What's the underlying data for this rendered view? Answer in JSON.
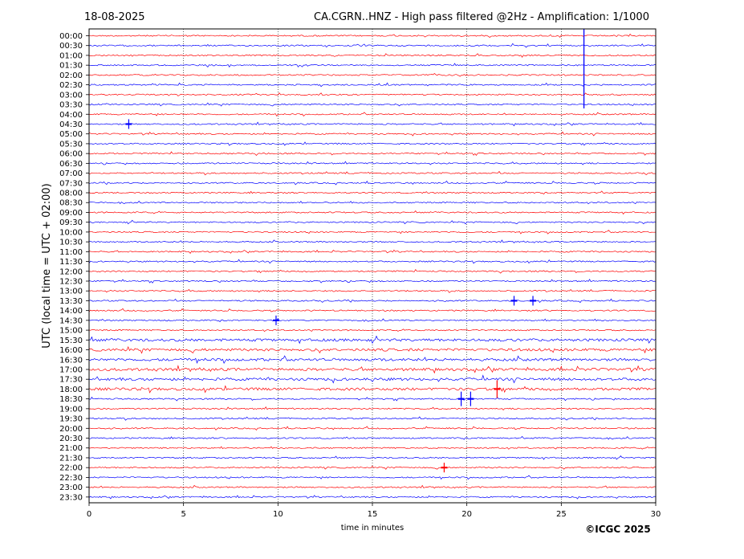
{
  "header": {
    "date": "18-08-2025",
    "title": "CA.CGRN..HNZ - High pass filtered @2Hz - Amplification: 1/1000"
  },
  "copyright": "©ICGC 2025",
  "chart_data": {
    "type": "line",
    "subtype": "helicorder",
    "title": "CA.CGRN..HNZ - High pass filtered @2Hz - Amplification: 1/1000",
    "xlabel": "time in minutes",
    "ylabel": "UTC (local time = UTC + 02:00)",
    "xlim": [
      0,
      30
    ],
    "xticks": [
      "0",
      "5",
      "10",
      "15",
      "20",
      "25",
      "30"
    ],
    "grid_x": "dotted at 5, 10, 15, 20, 25",
    "trace_colors": [
      "#ff0000",
      "#0000ff"
    ],
    "rows": [
      "00:00",
      "00:30",
      "01:00",
      "01:30",
      "02:00",
      "02:30",
      "03:00",
      "03:30",
      "04:00",
      "04:30",
      "05:00",
      "05:30",
      "06:00",
      "06:30",
      "07:00",
      "07:30",
      "08:00",
      "08:30",
      "09:00",
      "09:30",
      "10:00",
      "10:30",
      "11:00",
      "11:30",
      "12:00",
      "12:30",
      "13:00",
      "13:30",
      "14:00",
      "14:30",
      "15:00",
      "15:30",
      "16:00",
      "16:30",
      "17:00",
      "17:30",
      "18:00",
      "18:30",
      "19:00",
      "19:30",
      "20:00",
      "20:30",
      "21:00",
      "21:30",
      "22:00",
      "22:30",
      "23:00",
      "23:30"
    ],
    "events": [
      {
        "row": "00:00",
        "minute": 26.2,
        "note": "large vertical spike spanning 00:00–03:30"
      },
      {
        "row": "04:30",
        "minute": 2.1
      },
      {
        "row": "13:30",
        "minute": 22.5
      },
      {
        "row": "13:30",
        "minute": 23.5
      },
      {
        "row": "14:30",
        "minute": 9.9
      },
      {
        "row": "18:00",
        "minute": 21.6
      },
      {
        "row": "18:30",
        "minute": 19.7
      },
      {
        "row": "18:30",
        "minute": 20.2
      },
      {
        "row": "22:00",
        "minute": 18.8
      }
    ]
  }
}
